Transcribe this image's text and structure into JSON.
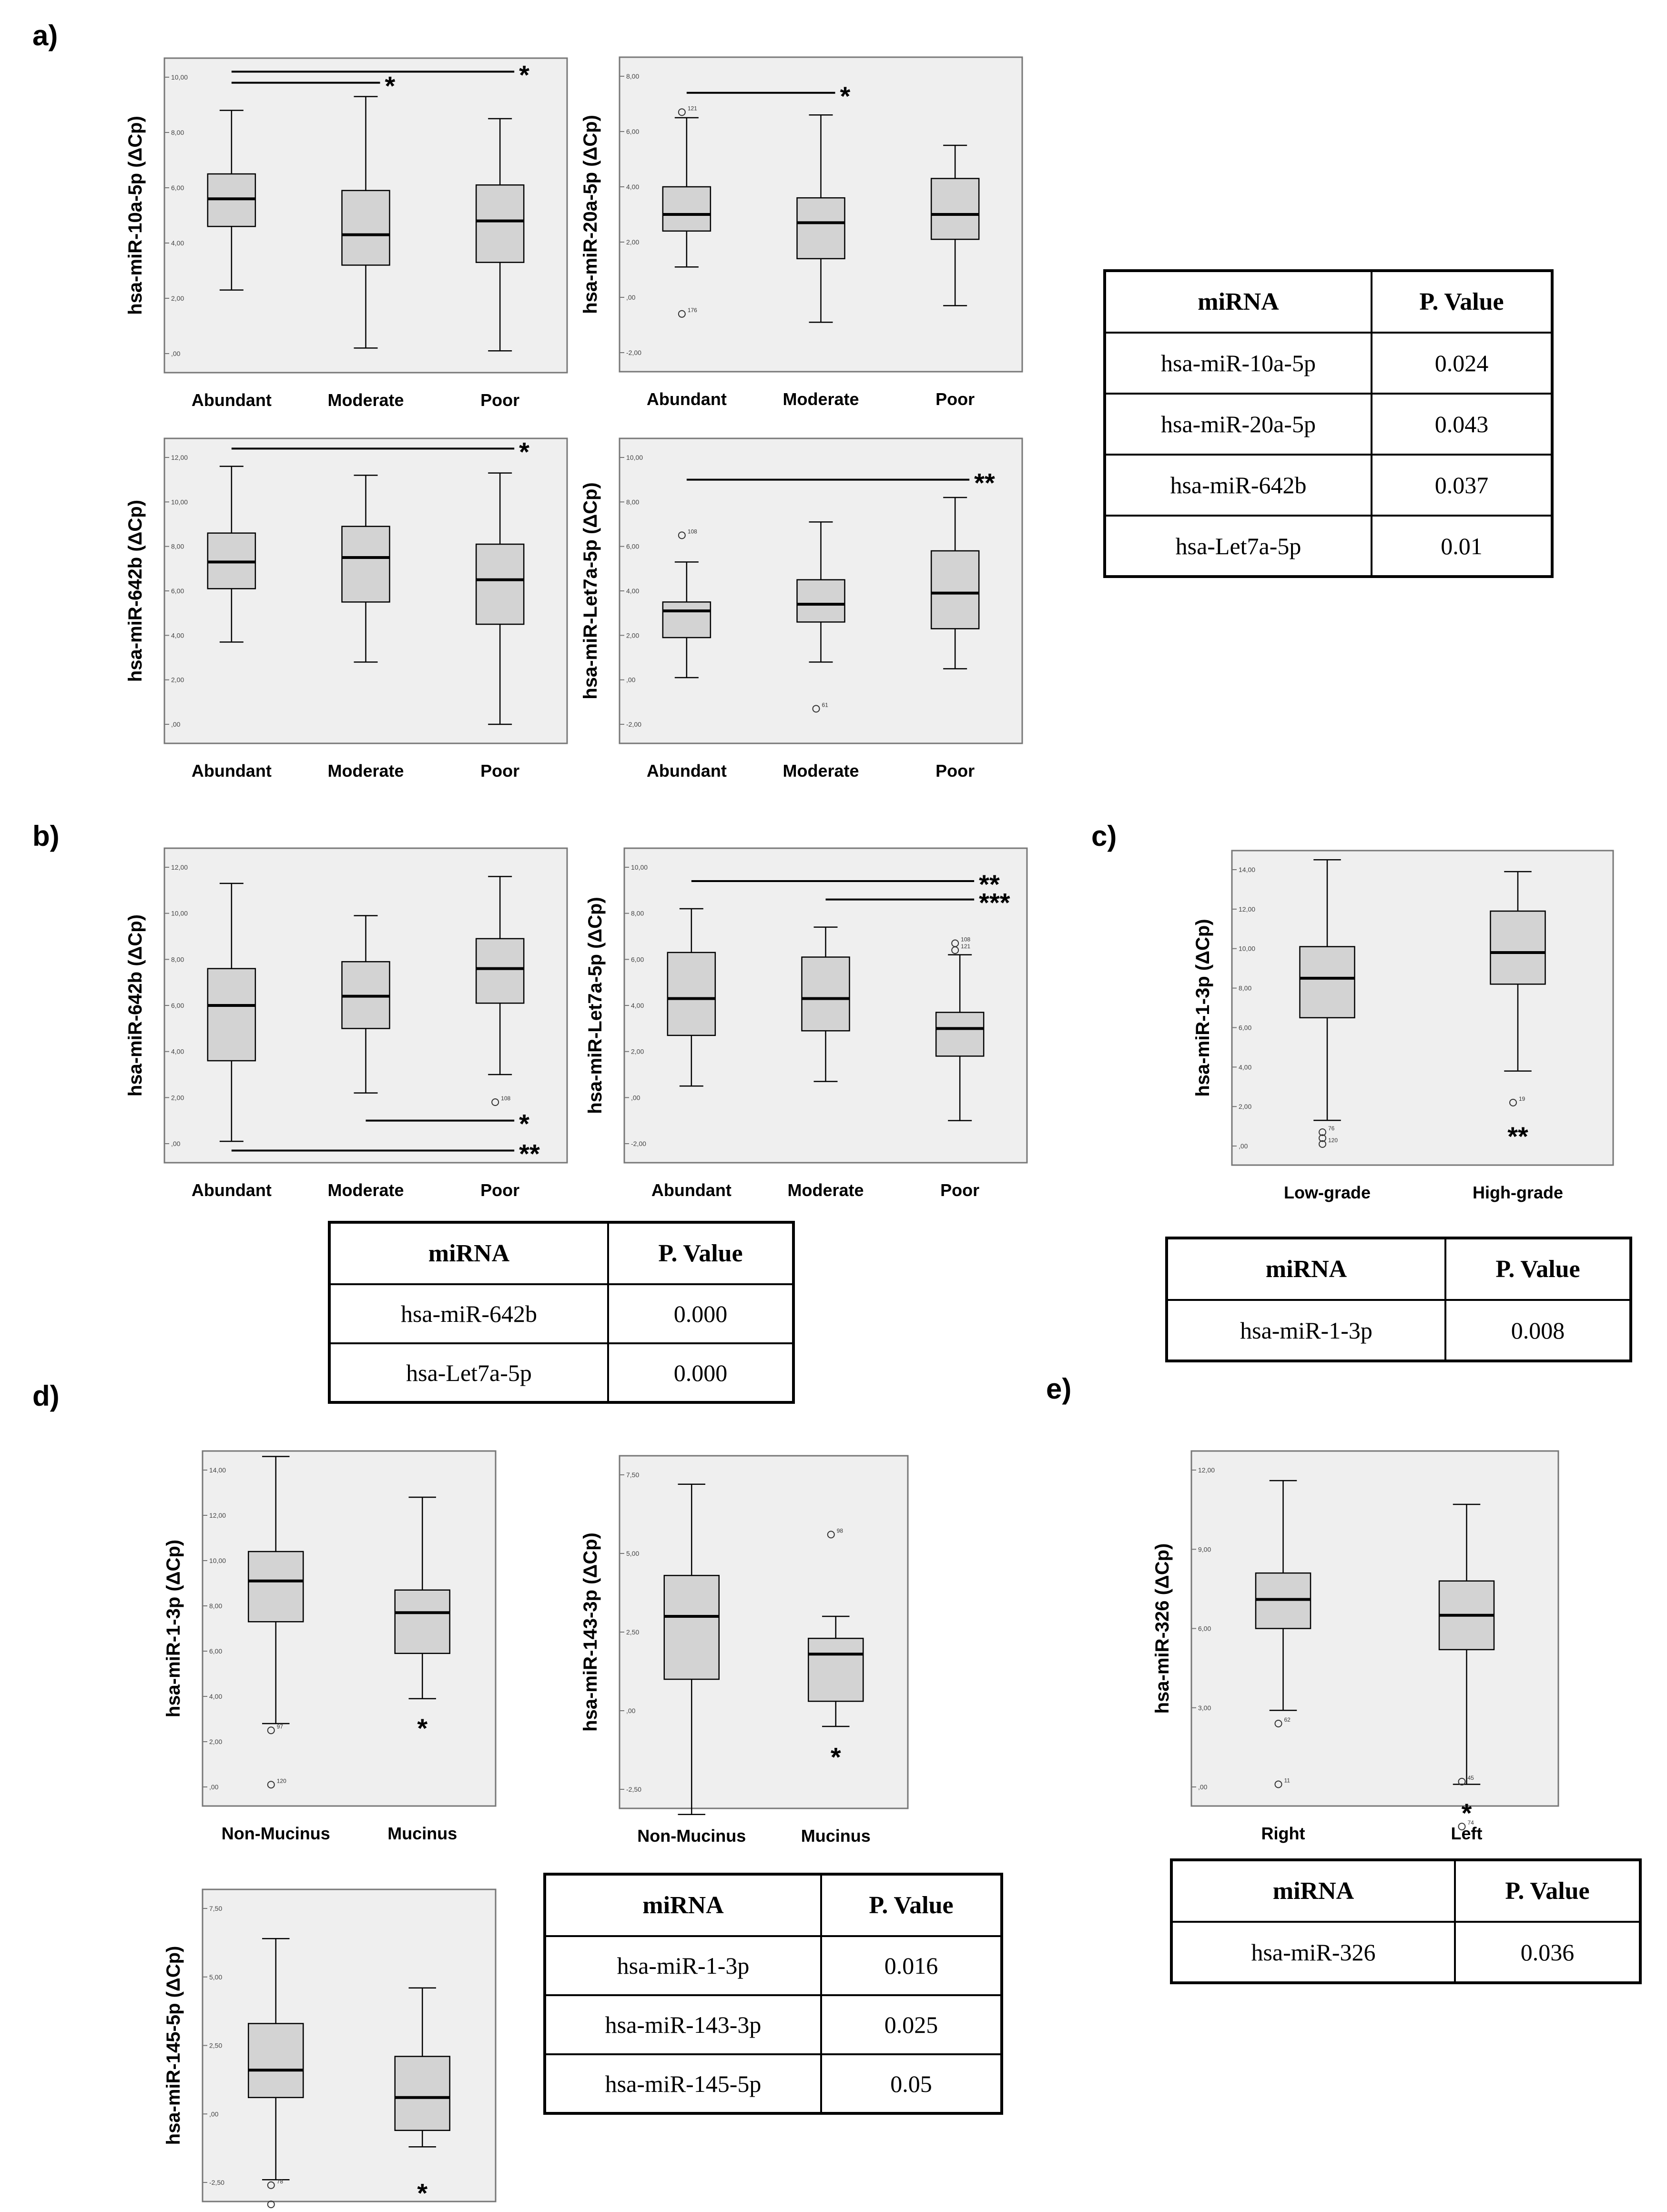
{
  "panel_labels": [
    "a)",
    "b)",
    "c)",
    "d)",
    "e)"
  ],
  "table_header": {
    "mirna": "miRNA",
    "pvalue": "P. Value"
  },
  "tables": {
    "a": [
      [
        "hsa-miR-10a-5p",
        "0.024"
      ],
      [
        "hsa-miR-20a-5p",
        "0.043"
      ],
      [
        "hsa-miR-642b",
        "0.037"
      ],
      [
        "hsa-Let7a-5p",
        "0.01"
      ]
    ],
    "b": [
      [
        "hsa-miR-642b",
        "0.000"
      ],
      [
        "hsa-Let7a-5p",
        "0.000"
      ]
    ],
    "c": [
      [
        "hsa-miR-1-3p",
        "0.008"
      ]
    ],
    "d": [
      [
        "hsa-miR-1-3p",
        "0.016"
      ],
      [
        "hsa-miR-143-3p",
        "0.025"
      ],
      [
        "hsa-miR-145-5p",
        "0.05"
      ]
    ],
    "e": [
      [
        "hsa-miR-326",
        "0.036"
      ]
    ]
  },
  "colors": {
    "plot_bg": "#efefef",
    "box_fill": "#d3d3d3",
    "frame": "#777777",
    "line": "#000000"
  },
  "chart_data": [
    {
      "id": "a1",
      "type": "boxplot",
      "ylabel": "hsa-miR-10a-5p (ΔCp)",
      "categories": [
        "Abundant",
        "Moderate",
        "Poor"
      ],
      "ylim": [
        0,
        10
      ],
      "yticks": [
        0,
        2,
        4,
        6,
        8,
        10
      ],
      "yticklabels": [
        ",00",
        "2,00",
        "4,00",
        "6,00",
        "8,00",
        "10,00"
      ],
      "boxes": [
        {
          "min": 2.3,
          "q1": 4.6,
          "median": 5.6,
          "q3": 6.5,
          "max": 8.8
        },
        {
          "min": 0.2,
          "q1": 3.2,
          "median": 4.3,
          "q3": 5.9,
          "max": 9.3
        },
        {
          "min": 0.1,
          "q1": 3.3,
          "median": 4.8,
          "q3": 6.1,
          "max": 8.5
        }
      ],
      "outliers": [],
      "significance": [
        {
          "from": 0,
          "to": 2,
          "at": 10.2,
          "label": "*"
        },
        {
          "from": 0,
          "to": 1,
          "at": 9.8,
          "label": "*"
        }
      ]
    },
    {
      "id": "a2",
      "type": "boxplot",
      "ylabel": "hsa-miR-20a-5p (ΔCp)",
      "categories": [
        "Abundant",
        "Moderate",
        "Poor"
      ],
      "ylim": [
        -2,
        8
      ],
      "yticks": [
        -2,
        0,
        2,
        4,
        6,
        8
      ],
      "yticklabels": [
        "-2,00",
        ",00",
        "2,00",
        "4,00",
        "6,00",
        "8,00"
      ],
      "boxes": [
        {
          "min": 1.1,
          "q1": 2.4,
          "median": 3.0,
          "q3": 4.0,
          "max": 6.5
        },
        {
          "min": -0.9,
          "q1": 1.4,
          "median": 2.7,
          "q3": 3.6,
          "max": 6.6
        },
        {
          "min": -0.3,
          "q1": 2.1,
          "median": 3.0,
          "q3": 4.3,
          "max": 5.5
        }
      ],
      "outliers": [
        {
          "box": 0,
          "value": 6.7,
          "label": "121"
        },
        {
          "box": 0,
          "value": -0.6,
          "label": "176"
        }
      ],
      "significance": [
        {
          "from": 0,
          "to": 1,
          "at": 7.4,
          "label": "*"
        }
      ]
    },
    {
      "id": "a3",
      "type": "boxplot",
      "ylabel": "hsa-miR-642b (ΔCp)",
      "categories": [
        "Abundant",
        "Moderate",
        "Poor"
      ],
      "ylim": [
        0,
        12
      ],
      "yticks": [
        0,
        2,
        4,
        6,
        8,
        10,
        12
      ],
      "yticklabels": [
        ",00",
        "2,00",
        "4,00",
        "6,00",
        "8,00",
        "10,00",
        "12,00"
      ],
      "boxes": [
        {
          "min": 3.7,
          "q1": 6.1,
          "median": 7.3,
          "q3": 8.6,
          "max": 11.6
        },
        {
          "min": 2.8,
          "q1": 5.5,
          "median": 7.5,
          "q3": 8.9,
          "max": 11.2
        },
        {
          "min": 0.0,
          "q1": 4.5,
          "median": 6.5,
          "q3": 8.1,
          "max": 11.3
        }
      ],
      "outliers": [],
      "significance": [
        {
          "from": 0,
          "to": 2,
          "at": 12.4,
          "label": "*"
        }
      ]
    },
    {
      "id": "a4",
      "type": "boxplot",
      "ylabel": "hsa-miR-Let7a-5p (ΔCp)",
      "categories": [
        "Abundant",
        "Moderate",
        "Poor"
      ],
      "ylim": [
        -2,
        10
      ],
      "yticks": [
        -2,
        0,
        2,
        4,
        6,
        8,
        10
      ],
      "yticklabels": [
        "-2,00",
        ",00",
        "2,00",
        "4,00",
        "6,00",
        "8,00",
        "10,00"
      ],
      "boxes": [
        {
          "min": 0.1,
          "q1": 1.9,
          "median": 3.1,
          "q3": 3.5,
          "max": 5.3
        },
        {
          "min": 0.8,
          "q1": 2.6,
          "median": 3.4,
          "q3": 4.5,
          "max": 7.1
        },
        {
          "min": 0.5,
          "q1": 2.3,
          "median": 3.9,
          "q3": 5.8,
          "max": 8.2
        }
      ],
      "outliers": [
        {
          "box": 0,
          "value": 6.5,
          "label": "108"
        },
        {
          "box": 1,
          "value": -1.3,
          "label": "61"
        }
      ],
      "significance": [
        {
          "from": 0,
          "to": 2,
          "at": 9.0,
          "label": "**"
        }
      ]
    },
    {
      "id": "b1",
      "type": "boxplot",
      "ylabel": "hsa-miR-642b (ΔCp)",
      "categories": [
        "Abundant",
        "Moderate",
        "Poor"
      ],
      "ylim": [
        0,
        12
      ],
      "yticks": [
        0,
        2,
        4,
        6,
        8,
        10,
        12
      ],
      "yticklabels": [
        ",00",
        "2,00",
        "4,00",
        "6,00",
        "8,00",
        "10,00",
        "12,00"
      ],
      "boxes": [
        {
          "min": 0.1,
          "q1": 3.6,
          "median": 6.0,
          "q3": 7.6,
          "max": 11.3
        },
        {
          "min": 2.2,
          "q1": 5.0,
          "median": 6.4,
          "q3": 7.9,
          "max": 9.9
        },
        {
          "min": 3.0,
          "q1": 6.1,
          "median": 7.6,
          "q3": 8.9,
          "max": 11.6
        }
      ],
      "outliers": [
        {
          "box": 2,
          "value": 1.8,
          "label": "108"
        }
      ],
      "significance": [
        {
          "from": 1,
          "to": 2,
          "at": 1.0,
          "label": "*"
        },
        {
          "from": 0,
          "to": 2,
          "at": -0.3,
          "label": "**"
        }
      ]
    },
    {
      "id": "b2",
      "type": "boxplot",
      "ylabel": "hsa-miR-Let7a-5p (ΔCp)",
      "categories": [
        "Abundant",
        "Moderate",
        "Poor"
      ],
      "ylim": [
        -2,
        10
      ],
      "yticks": [
        -2,
        0,
        2,
        4,
        6,
        8,
        10
      ],
      "yticklabels": [
        "-2,00",
        ",00",
        "2,00",
        "4,00",
        "6,00",
        "8,00",
        "10,00"
      ],
      "boxes": [
        {
          "min": 0.5,
          "q1": 2.7,
          "median": 4.3,
          "q3": 6.3,
          "max": 8.2
        },
        {
          "min": 0.7,
          "q1": 2.9,
          "median": 4.3,
          "q3": 6.1,
          "max": 7.4
        },
        {
          "min": -1.0,
          "q1": 1.8,
          "median": 3.0,
          "q3": 3.7,
          "max": 6.2
        }
      ],
      "outliers": [
        {
          "box": 2,
          "value": 6.7,
          "label": "108"
        },
        {
          "box": 2,
          "value": 6.4,
          "label": "121"
        }
      ],
      "significance": [
        {
          "from": 0,
          "to": 2,
          "at": 9.4,
          "label": "**"
        },
        {
          "from": 1,
          "to": 2,
          "at": 8.6,
          "label": "***"
        }
      ]
    },
    {
      "id": "c1",
      "type": "boxplot",
      "ylabel": "hsa-miR-1-3p (ΔCp)",
      "categories": [
        "Low-grade",
        "High-grade"
      ],
      "ylim": [
        0,
        14
      ],
      "yticks": [
        0,
        2,
        4,
        6,
        8,
        10,
        12,
        14
      ],
      "yticklabels": [
        ",00",
        "2,00",
        "4,00",
        "6,00",
        "8,00",
        "10,00",
        "12,00",
        "14,00"
      ],
      "boxes": [
        {
          "min": 1.3,
          "q1": 6.5,
          "median": 8.5,
          "q3": 10.1,
          "max": 14.5
        },
        {
          "min": 3.8,
          "q1": 8.2,
          "median": 9.8,
          "q3": 11.9,
          "max": 13.9
        }
      ],
      "outliers": [
        {
          "box": 0,
          "value": 0.7,
          "label": "76"
        },
        {
          "box": 0,
          "value": 0.4,
          "label": ""
        },
        {
          "box": 0,
          "value": 0.1,
          "label": "120"
        },
        {
          "box": 1,
          "value": 2.2,
          "label": "19"
        }
      ],
      "significance": [],
      "markers": [
        {
          "box": 1,
          "value": 0.6,
          "label": "**"
        }
      ]
    },
    {
      "id": "d1",
      "type": "boxplot",
      "ylabel": "hsa-miR-1-3p (ΔCp)",
      "categories": [
        "Non-Mucinus",
        "Mucinus"
      ],
      "ylim": [
        0,
        14
      ],
      "yticks": [
        0,
        2,
        4,
        6,
        8,
        10,
        12,
        14
      ],
      "yticklabels": [
        ",00",
        "2,00",
        "4,00",
        "6,00",
        "8,00",
        "10,00",
        "12,00",
        "14,00"
      ],
      "boxes": [
        {
          "min": 2.8,
          "q1": 7.3,
          "median": 9.1,
          "q3": 10.4,
          "max": 14.6
        },
        {
          "min": 3.9,
          "q1": 5.9,
          "median": 7.7,
          "q3": 8.7,
          "max": 12.8
        }
      ],
      "outliers": [
        {
          "box": 0,
          "value": 2.5,
          "label": "97"
        },
        {
          "box": 0,
          "value": 0.1,
          "label": "120"
        }
      ],
      "significance": [],
      "markers": [
        {
          "box": 1,
          "value": 2.7,
          "label": "*"
        }
      ]
    },
    {
      "id": "d2",
      "type": "boxplot",
      "ylabel": "hsa-miR-143-3p (ΔCp)",
      "categories": [
        "Non-Mucinus",
        "Mucinus"
      ],
      "ylim": [
        -2.5,
        7.5
      ],
      "yticks": [
        -2.5,
        0,
        2.5,
        5,
        7.5
      ],
      "yticklabels": [
        "-2,50",
        ",00",
        "2,50",
        "5,00",
        "7,50"
      ],
      "boxes": [
        {
          "min": -3.3,
          "q1": 1.0,
          "median": 3.0,
          "q3": 4.3,
          "max": 7.2
        },
        {
          "min": -0.5,
          "q1": 0.3,
          "median": 1.8,
          "q3": 2.3,
          "max": 3.0
        }
      ],
      "outliers": [
        {
          "box": 1,
          "value": 5.6,
          "label": "98"
        }
      ],
      "significance": [],
      "markers": [
        {
          "box": 1,
          "value": -1.4,
          "label": "*"
        }
      ]
    },
    {
      "id": "d3",
      "type": "boxplot",
      "ylabel": "hsa-miR-145-5p (ΔCp)",
      "categories": [
        "Non-Mucinus",
        "Mucinus"
      ],
      "ylim": [
        -2.5,
        7.5
      ],
      "yticks": [
        -2.5,
        0,
        2.5,
        5,
        7.5
      ],
      "yticklabels": [
        "-2,50",
        ",00",
        "2,50",
        "5,00",
        "7,50"
      ],
      "boxes": [
        {
          "min": -2.4,
          "q1": 0.6,
          "median": 1.6,
          "q3": 3.3,
          "max": 6.4
        },
        {
          "min": -1.2,
          "q1": -0.6,
          "median": 0.6,
          "q3": 2.1,
          "max": 4.6
        }
      ],
      "outliers": [
        {
          "box": 0,
          "value": -2.6,
          "label": "78"
        },
        {
          "box": 0,
          "value": -3.3,
          "label": ""
        }
      ],
      "significance": [],
      "markers": [
        {
          "box": 1,
          "value": -2.8,
          "label": "*"
        }
      ]
    },
    {
      "id": "e1",
      "type": "boxplot",
      "ylabel": "hsa-miR-326 (ΔCp)",
      "categories": [
        "Right",
        "Left"
      ],
      "ylim": [
        0,
        12
      ],
      "yticks": [
        0,
        3,
        6,
        9,
        12
      ],
      "yticklabels": [
        ",00",
        "3,00",
        "6,00",
        "9,00",
        "12,00"
      ],
      "boxes": [
        {
          "min": 2.9,
          "q1": 6.0,
          "median": 7.1,
          "q3": 8.1,
          "max": 11.6
        },
        {
          "min": 0.1,
          "q1": 5.2,
          "median": 6.5,
          "q3": 7.8,
          "max": 10.7
        }
      ],
      "outliers": [
        {
          "box": 0,
          "value": 2.4,
          "label": "62"
        },
        {
          "box": 0,
          "value": 0.1,
          "label": "11"
        },
        {
          "box": 1,
          "value": 0.2,
          "label": "45"
        },
        {
          "box": 1,
          "value": -1.5,
          "label": "74"
        }
      ],
      "significance": [],
      "markers": [
        {
          "box": 1,
          "value": -0.9,
          "label": "*"
        }
      ]
    }
  ]
}
